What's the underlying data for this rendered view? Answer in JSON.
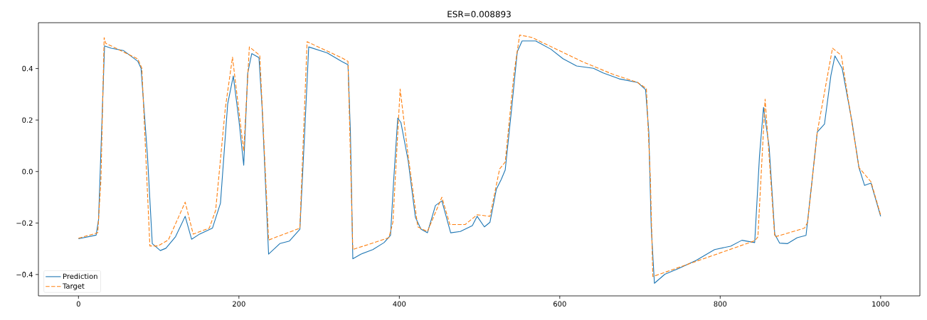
{
  "chart_data": {
    "type": "line",
    "title": "ESR=0.008893",
    "xlim": [
      -49.95,
      1048.95
    ],
    "ylim": [
      -0.483,
      0.578
    ],
    "xticks": [
      0,
      200,
      400,
      600,
      800,
      1000
    ],
    "yticks": [
      {
        "value": -0.4,
        "label": "−0.4"
      },
      {
        "value": -0.2,
        "label": "−0.2"
      },
      {
        "value": 0.0,
        "label": "0.0"
      },
      {
        "value": 0.2,
        "label": "0.2"
      },
      {
        "value": 0.4,
        "label": "0.4"
      }
    ],
    "legend": "bottom left",
    "series": [
      {
        "name": "Prediction",
        "color": "#1f77b4",
        "line_style": "solid",
        "x": [
          0,
          22,
          25,
          32.5,
          41,
          56,
          74,
          78,
          86,
          92,
          102,
          109,
          121,
          133,
          141,
          151,
          167,
          177,
          186,
          193,
          200,
          206,
          211,
          216,
          225,
          229,
          237,
          251,
          263,
          276,
          282,
          287,
          310,
          328,
          336,
          339,
          342,
          352,
          367,
          381,
          389,
          393,
          398,
          402,
          411,
          420,
          427,
          435,
          445,
          453,
          464,
          476,
          491,
          497,
          506,
          513,
          521,
          527,
          532,
          540,
          547,
          553,
          570,
          589,
          604,
          621,
          642,
          654,
          674,
          697,
          707,
          711,
          714,
          718,
          731,
          748,
          770,
          793,
          813,
          827,
          843,
          849,
          854,
          861,
          868,
          874,
          884,
          896,
          907,
          914,
          921,
          930,
          938,
          943,
          952,
          964,
          973,
          980,
          988,
          1000
        ],
        "values": [
          -0.261,
          -0.247,
          -0.188,
          0.488,
          0.479,
          0.47,
          0.428,
          0.401,
          0.061,
          -0.28,
          -0.307,
          -0.298,
          -0.253,
          -0.174,
          -0.263,
          -0.243,
          -0.22,
          -0.123,
          0.263,
          0.371,
          0.199,
          0.024,
          0.383,
          0.458,
          0.442,
          0.245,
          -0.321,
          -0.28,
          -0.27,
          -0.224,
          0.153,
          0.484,
          0.461,
          0.428,
          0.415,
          0.153,
          -0.339,
          -0.321,
          -0.303,
          -0.276,
          -0.248,
          -0.031,
          0.208,
          0.19,
          0.042,
          -0.178,
          -0.224,
          -0.238,
          -0.132,
          -0.114,
          -0.238,
          -0.233,
          -0.21,
          -0.174,
          -0.215,
          -0.197,
          -0.068,
          -0.031,
          0.006,
          0.245,
          0.465,
          0.507,
          0.507,
          0.475,
          0.438,
          0.41,
          0.401,
          0.383,
          0.36,
          0.346,
          0.318,
          0.153,
          -0.215,
          -0.434,
          -0.399,
          -0.377,
          -0.345,
          -0.303,
          -0.29,
          -0.267,
          -0.276,
          0.061,
          0.249,
          0.097,
          -0.243,
          -0.278,
          -0.28,
          -0.257,
          -0.248,
          -0.05,
          0.153,
          0.184,
          0.373,
          0.449,
          0.401,
          0.199,
          0.015,
          -0.054,
          -0.045,
          -0.174
        ]
      },
      {
        "name": "Target",
        "color": "#ff7f0e",
        "line_style": "dashed",
        "x": [
          0,
          24,
          28,
          32,
          34,
          74,
          79,
          89,
          99,
          112,
          133,
          143,
          163,
          171,
          183,
          192,
          206,
          213,
          226,
          237,
          276,
          285,
          328,
          336,
          342,
          387,
          392,
          401,
          411,
          423,
          435,
          453,
          463,
          482,
          497,
          513,
          525,
          532,
          543,
          550,
          565,
          630,
          666,
          697,
          708,
          713,
          716,
          843,
          847,
          856,
          868,
          905,
          909,
          921,
          940,
          951,
          973,
          988,
          1000
        ],
        "values": [
          -0.259,
          -0.238,
          -0.031,
          0.52,
          0.498,
          0.437,
          0.401,
          -0.289,
          -0.289,
          -0.266,
          -0.119,
          -0.243,
          -0.22,
          -0.151,
          0.245,
          0.444,
          0.079,
          0.484,
          0.451,
          -0.266,
          -0.22,
          0.504,
          0.442,
          0.428,
          -0.303,
          -0.257,
          -0.197,
          0.32,
          0.061,
          -0.215,
          -0.233,
          -0.1,
          -0.206,
          -0.206,
          -0.168,
          -0.174,
          0.01,
          0.037,
          0.383,
          0.53,
          0.521,
          0.424,
          0.378,
          0.346,
          0.322,
          -0.031,
          -0.408,
          -0.269,
          -0.254,
          0.281,
          -0.254,
          -0.22,
          -0.197,
          0.153,
          0.479,
          0.451,
          0.015,
          -0.04,
          -0.169
        ]
      }
    ]
  }
}
